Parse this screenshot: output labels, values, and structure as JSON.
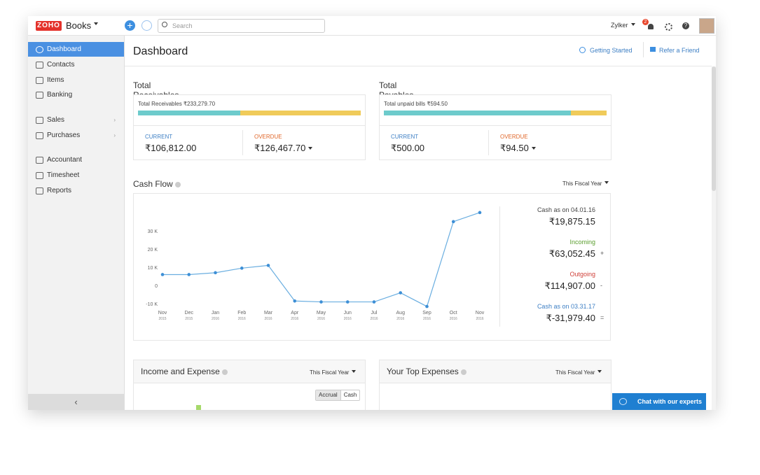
{
  "header": {
    "logo": "ZOHO",
    "product": "Books",
    "search_placeholder": "Search",
    "org": "Zylker",
    "notifications": "2"
  },
  "sidebar": {
    "items": [
      "Dashboard",
      "Contacts",
      "Items",
      "Banking",
      "Sales",
      "Purchases",
      "Accountant",
      "Timesheet",
      "Reports"
    ]
  },
  "page": {
    "title": "Dashboard",
    "getting_started": "Getting Started",
    "refer": "Refer a Friend"
  },
  "receivables": {
    "title": "Total Receivables",
    "total_label": "Total Receivables ₹233,279.70",
    "current": {
      "label": "CURRENT",
      "value": 106812,
      "value_label": "₹106,812.00"
    },
    "overdue": {
      "label": "OVERDUE",
      "value": 126467.7,
      "value_label": "₹126,467.70"
    }
  },
  "payables": {
    "title": "Total Payables",
    "total_label": "Total unpaid bills ₹594.50",
    "current": {
      "label": "CURRENT",
      "value": 500,
      "value_label": "₹500.00"
    },
    "overdue": {
      "label": "OVERDUE",
      "value": 94.5,
      "value_label": "₹94.50"
    }
  },
  "cash_flow": {
    "title": "Cash Flow",
    "period": "This Fiscal Year",
    "summary": [
      {
        "label": "Cash as on 04.01.16",
        "amount": "₹19,875.15",
        "sign": ""
      },
      {
        "label": "Incoming",
        "amount": "₹63,052.45",
        "sign": "+"
      },
      {
        "label": "Outgoing",
        "amount": "₹114,907.00",
        "sign": "-"
      },
      {
        "label": "Cash as on 03.31.17",
        "amount": "₹-31,979.40",
        "sign": "="
      }
    ]
  },
  "chart_data": {
    "type": "line",
    "categories": [
      "Nov",
      "Dec",
      "Jan",
      "Feb",
      "Mar",
      "Apr",
      "May",
      "Jun",
      "Jul",
      "Aug",
      "Sep",
      "Oct",
      "Nov"
    ],
    "category_years": [
      "2015",
      "2015",
      "2016",
      "2016",
      "2016",
      "2016",
      "2016",
      "2016",
      "2016",
      "2016",
      "2016",
      "2016",
      "2016"
    ],
    "values": [
      6000,
      6000,
      7000,
      9500,
      11000,
      -8500,
      -9000,
      -9000,
      -9000,
      -4000,
      -11500,
      35000,
      40000
    ],
    "color": "#6aaee0",
    "ylim": [
      -13000,
      43000
    ],
    "yticks": [
      {
        "value": -10000,
        "label": "-10 K"
      },
      0,
      {
        "value": 10000,
        "label": "10 K"
      },
      {
        "value": 20000,
        "label": "20 K"
      },
      {
        "value": 30000,
        "label": "30 K"
      }
    ],
    "grid": false
  },
  "income_expense": {
    "title": "Income and Expense",
    "period": "This Fiscal Year",
    "toggle": [
      "Accrual",
      "Cash"
    ]
  },
  "top_expenses": {
    "title": "Your Top Expenses",
    "period": "This Fiscal Year"
  },
  "chat": "Chat with our experts"
}
